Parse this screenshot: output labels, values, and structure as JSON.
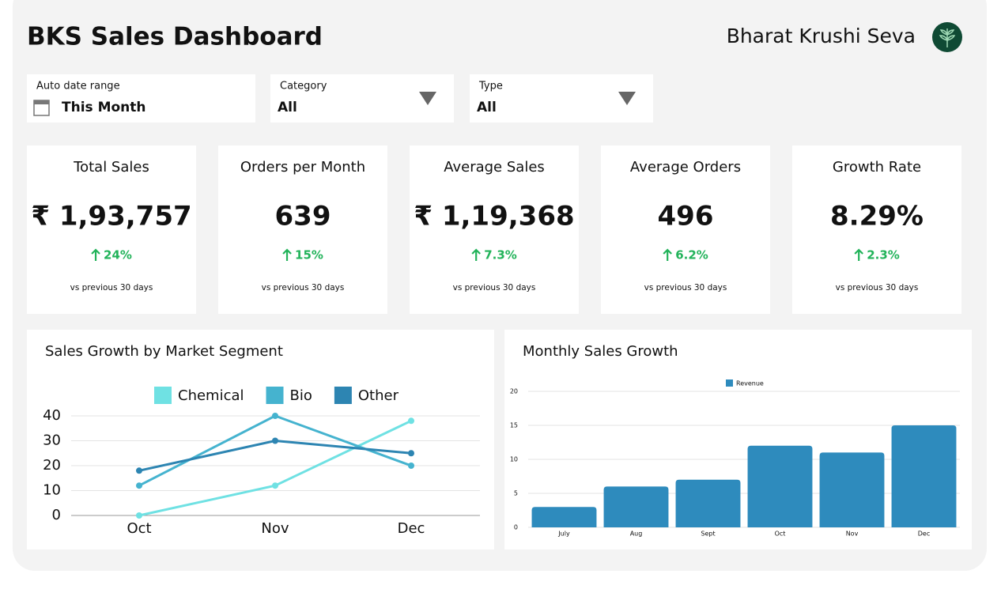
{
  "header": {
    "title": "BKS Sales Dashboard",
    "brand": "Bharat Krushi Seva"
  },
  "filters": [
    {
      "label": "Auto date range",
      "value": "This Month"
    },
    {
      "label": "Category",
      "value": "All"
    },
    {
      "label": "Type",
      "value": "All"
    }
  ],
  "kpis": [
    {
      "title": "Total Sales",
      "value": "₹ 1,93,757",
      "change": "24%",
      "note": "vs previous 30 days"
    },
    {
      "title": "Orders per Month",
      "value": "639",
      "change": "15%",
      "note": "vs previous 30 days"
    },
    {
      "title": "Average Sales",
      "value": "₹ 1,19,368",
      "change": "7.3%",
      "note": "vs previous 30 days"
    },
    {
      "title": "Average Orders",
      "value": "496",
      "change": "6.2%",
      "note": "vs previous 30 days"
    },
    {
      "title": "Growth Rate",
      "value": "8.29%",
      "change": "2.3%",
      "note": "vs previous 30 days"
    }
  ],
  "chart_data": [
    {
      "type": "line",
      "title": "Sales Growth by Market Segment",
      "categories": [
        "Oct",
        "Nov",
        "Dec"
      ],
      "series": [
        {
          "name": "Chemical",
          "color": "#6fe1e3",
          "values": [
            0,
            12,
            38
          ]
        },
        {
          "name": "Bio",
          "color": "#45b3cf",
          "values": [
            12,
            40,
            20
          ]
        },
        {
          "name": "Other",
          "color": "#2d85b2",
          "values": [
            18,
            30,
            25
          ]
        }
      ],
      "ylim": [
        0,
        40
      ],
      "yticks": [
        0,
        10,
        20,
        30,
        40
      ],
      "grid": true
    },
    {
      "type": "bar",
      "title": "Monthly Sales Growth",
      "categories": [
        "July",
        "Aug",
        "Sept",
        "Oct",
        "Nov",
        "Dec"
      ],
      "series": [
        {
          "name": "Revenue",
          "color": "#2e8bbd",
          "values": [
            3,
            6,
            7,
            12,
            11,
            15
          ]
        }
      ],
      "ylim": [
        0,
        20
      ],
      "yticks": [
        0,
        5,
        10,
        15,
        20
      ],
      "grid": true
    }
  ]
}
